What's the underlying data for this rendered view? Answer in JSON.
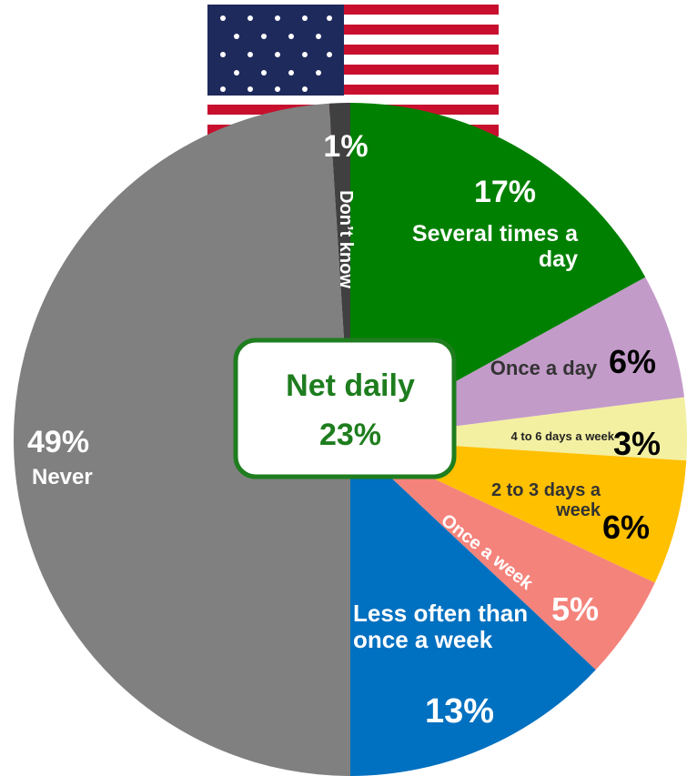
{
  "chart_data": {
    "type": "pie",
    "categories": [
      "Several times a day",
      "Once a day",
      "4 to 6 days a week",
      "2 to 3 days a week",
      "Once a week",
      "Less often than once a week",
      "Never",
      "Don’t know"
    ],
    "values": [
      17,
      6,
      3,
      6,
      5,
      13,
      49,
      1
    ],
    "value_labels": [
      "17%",
      "6%",
      "3%",
      "6%",
      "5%",
      "13%",
      "49%",
      "1%"
    ],
    "colors": [
      "#008000",
      "#c39bc9",
      "#f3f0a2",
      "#ffc000",
      "#f4837b",
      "#0070c0",
      "#808080",
      "#404040"
    ],
    "annotation_title": "Net daily",
    "annotation_text": "23%"
  }
}
